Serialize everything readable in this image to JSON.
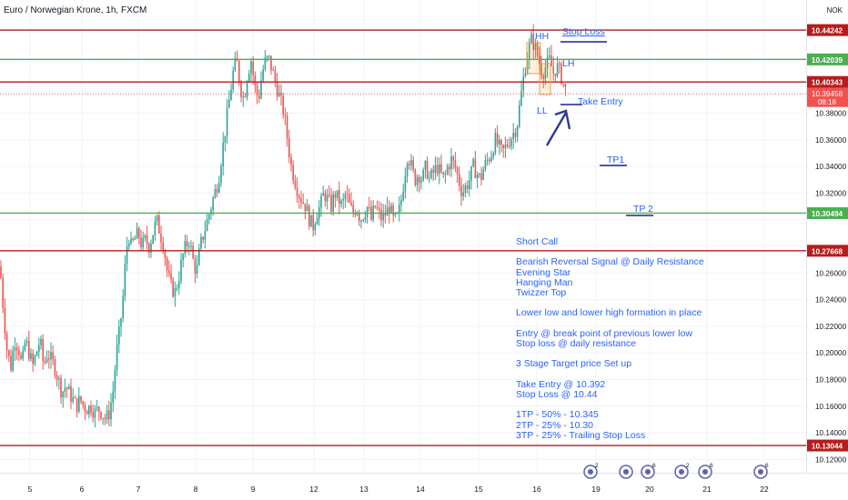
{
  "header": {
    "title": "Euro / Norwegian Krone, 1h, FXCM",
    "currency": "NOK"
  },
  "chart_data": {
    "type": "candlestick",
    "title": "Euro / Norwegian Krone, 1h, FXCM",
    "ylim": [
      10.11,
      10.465
    ],
    "y_ticks": [
      10.12,
      10.14,
      10.16,
      10.18,
      10.2,
      10.22,
      10.24,
      10.26,
      10.28,
      10.3,
      10.32,
      10.34,
      10.36,
      10.38,
      10.4,
      10.42
    ],
    "y_tick_labels": [
      "10.12000",
      "10.14000",
      "10.16000",
      "10.18000",
      "10.20000",
      "10.22000",
      "10.24000",
      "10.26000",
      "10.28000",
      "10.30000",
      "10.32000",
      "10.34000",
      "10.36000",
      "10.38000",
      "10.40000",
      "10.42000"
    ],
    "x_ticks": [
      "5",
      "6",
      "7",
      "8",
      "9",
      "12",
      "13",
      "14",
      "15",
      "16",
      "19",
      "20",
      "21",
      "22"
    ],
    "grid": true,
    "colors": {
      "up": "#26a69a",
      "down": "#ef5350",
      "resistance": "#b71c1c",
      "support": "#4caf50",
      "note": "#2962ff"
    },
    "levels": [
      {
        "price": 10.44242,
        "label": "10.44242",
        "kind": "resistance"
      },
      {
        "price": 10.42039,
        "label": "10.42039",
        "kind": "support"
      },
      {
        "price": 10.40343,
        "label": "10.40343",
        "kind": "resistance"
      },
      {
        "price": 10.30494,
        "label": "10.30494",
        "kind": "support"
      },
      {
        "price": 10.27668,
        "label": "10.27668",
        "kind": "resistance"
      },
      {
        "price": 10.13044,
        "label": "10.13044",
        "kind": "resistance"
      }
    ],
    "last_price": {
      "price": 10.39458,
      "label": "10.39458",
      "countdown": "08:18"
    },
    "close_path": [
      [
        0,
        10.265
      ],
      [
        4,
        10.23
      ],
      [
        8,
        10.2
      ],
      [
        12,
        10.19
      ],
      [
        16,
        10.21
      ],
      [
        20,
        10.205
      ],
      [
        24,
        10.19
      ],
      [
        28,
        10.21
      ],
      [
        32,
        10.2
      ],
      [
        36,
        10.19
      ],
      [
        40,
        10.2
      ],
      [
        44,
        10.21
      ],
      [
        48,
        10.19
      ],
      [
        52,
        10.2
      ],
      [
        56,
        10.195
      ],
      [
        60,
        10.19
      ],
      [
        64,
        10.18
      ],
      [
        68,
        10.17
      ],
      [
        72,
        10.175
      ],
      [
        76,
        10.17
      ],
      [
        80,
        10.165
      ],
      [
        84,
        10.16
      ],
      [
        88,
        10.165
      ],
      [
        92,
        10.16
      ],
      [
        96,
        10.158
      ],
      [
        100,
        10.16
      ],
      [
        104,
        10.155
      ],
      [
        108,
        10.158
      ],
      [
        112,
        10.155
      ],
      [
        116,
        10.15
      ],
      [
        120,
        10.155
      ],
      [
        124,
        10.17
      ],
      [
        128,
        10.2
      ],
      [
        132,
        10.22
      ],
      [
        135,
        10.24
      ],
      [
        138,
        10.27
      ],
      [
        141,
        10.29
      ],
      [
        144,
        10.28
      ],
      [
        148,
        10.285
      ],
      [
        152,
        10.29
      ],
      [
        156,
        10.28
      ],
      [
        160,
        10.285
      ],
      [
        164,
        10.28
      ],
      [
        168,
        10.29
      ],
      [
        172,
        10.3
      ],
      [
        176,
        10.29
      ],
      [
        180,
        10.28
      ],
      [
        184,
        10.26
      ],
      [
        188,
        10.25
      ],
      [
        192,
        10.245
      ],
      [
        196,
        10.255
      ],
      [
        200,
        10.27
      ],
      [
        204,
        10.28
      ],
      [
        208,
        10.285
      ],
      [
        212,
        10.27
      ],
      [
        216,
        10.26
      ],
      [
        220,
        10.28
      ],
      [
        224,
        10.29
      ],
      [
        228,
        10.3
      ],
      [
        232,
        10.31
      ],
      [
        236,
        10.32
      ],
      [
        240,
        10.33
      ],
      [
        244,
        10.35
      ],
      [
        248,
        10.37
      ],
      [
        252,
        10.39
      ],
      [
        256,
        10.41
      ],
      [
        260,
        10.42
      ],
      [
        264,
        10.4
      ],
      [
        268,
        10.39
      ],
      [
        272,
        10.41
      ],
      [
        276,
        10.42
      ],
      [
        280,
        10.4
      ],
      [
        284,
        10.39
      ],
      [
        288,
        10.41
      ],
      [
        292,
        10.42
      ],
      [
        296,
        10.42
      ],
      [
        300,
        10.41
      ],
      [
        304,
        10.4
      ],
      [
        308,
        10.39
      ],
      [
        312,
        10.38
      ],
      [
        316,
        10.36
      ],
      [
        320,
        10.34
      ],
      [
        324,
        10.33
      ],
      [
        328,
        10.32
      ],
      [
        332,
        10.315
      ],
      [
        336,
        10.31
      ],
      [
        340,
        10.3
      ],
      [
        344,
        10.295
      ],
      [
        348,
        10.305
      ],
      [
        352,
        10.31
      ],
      [
        356,
        10.32
      ],
      [
        360,
        10.315
      ],
      [
        364,
        10.31
      ],
      [
        368,
        10.32
      ],
      [
        372,
        10.315
      ],
      [
        376,
        10.31
      ],
      [
        380,
        10.32
      ],
      [
        384,
        10.31
      ],
      [
        388,
        10.305
      ],
      [
        392,
        10.31
      ],
      [
        396,
        10.3
      ],
      [
        400,
        10.305
      ],
      [
        404,
        10.31
      ],
      [
        408,
        10.3
      ],
      [
        412,
        10.31
      ],
      [
        416,
        10.305
      ],
      [
        420,
        10.3
      ],
      [
        424,
        10.305
      ],
      [
        428,
        10.31
      ],
      [
        432,
        10.3
      ],
      [
        436,
        10.3
      ],
      [
        440,
        10.31
      ],
      [
        444,
        10.33
      ],
      [
        448,
        10.35
      ],
      [
        452,
        10.34
      ],
      [
        456,
        10.33
      ],
      [
        460,
        10.335
      ],
      [
        464,
        10.33
      ],
      [
        468,
        10.34
      ],
      [
        472,
        10.33
      ],
      [
        476,
        10.335
      ],
      [
        480,
        10.34
      ],
      [
        484,
        10.335
      ],
      [
        488,
        10.33
      ],
      [
        492,
        10.34
      ],
      [
        496,
        10.345
      ],
      [
        500,
        10.34
      ],
      [
        504,
        10.33
      ],
      [
        508,
        10.32
      ],
      [
        512,
        10.325
      ],
      [
        516,
        10.33
      ],
      [
        520,
        10.34
      ],
      [
        524,
        10.335
      ],
      [
        528,
        10.33
      ],
      [
        532,
        10.34
      ],
      [
        536,
        10.345
      ],
      [
        540,
        10.35
      ],
      [
        544,
        10.36
      ],
      [
        548,
        10.355
      ],
      [
        552,
        10.35
      ],
      [
        556,
        10.355
      ],
      [
        560,
        10.36
      ],
      [
        564,
        10.365
      ],
      [
        568,
        10.37
      ],
      [
        572,
        10.39
      ],
      [
        576,
        10.41
      ],
      [
        580,
        10.425
      ],
      [
        584,
        10.435
      ],
      [
        588,
        10.43
      ],
      [
        592,
        10.42
      ],
      [
        596,
        10.41
      ],
      [
        600,
        10.415
      ],
      [
        604,
        10.42
      ],
      [
        608,
        10.41
      ],
      [
        612,
        10.415
      ],
      [
        616,
        10.41
      ],
      [
        620,
        10.4
      ],
      [
        623,
        10.395
      ]
    ]
  },
  "annotations": {
    "hh": "HH",
    "lh": "LH",
    "ll": "LL",
    "stop_loss": "Stop Loss",
    "take_entry": "Take Entry",
    "tp1": "TP1",
    "tp2": "TP 2"
  },
  "notes": [
    "Short Call",
    "",
    "Bearish Reversal Signal @ Daily Resistance",
    "Evening Star",
    "Hanging Man",
    "Twizzer Top",
    "",
    "Lower low and lower high formation in place",
    "",
    "Entry @ break point of previous lower low",
    "Stop loss @ daily resistance",
    "",
    "3 Stage Target price Set up",
    "",
    "Take Entry @ 10.392",
    "Stop Loss @ 10.44",
    "",
    "1TP - 50% - 10.345",
    "2TP - 25% - 10.30",
    "3TP - 25% - Trailing Stop Loss"
  ],
  "events": [
    {
      "label": "2"
    },
    {
      "label": ""
    },
    {
      "label": "6"
    },
    {
      "label": "2"
    },
    {
      "label": "6"
    },
    {
      "label": "6"
    }
  ]
}
